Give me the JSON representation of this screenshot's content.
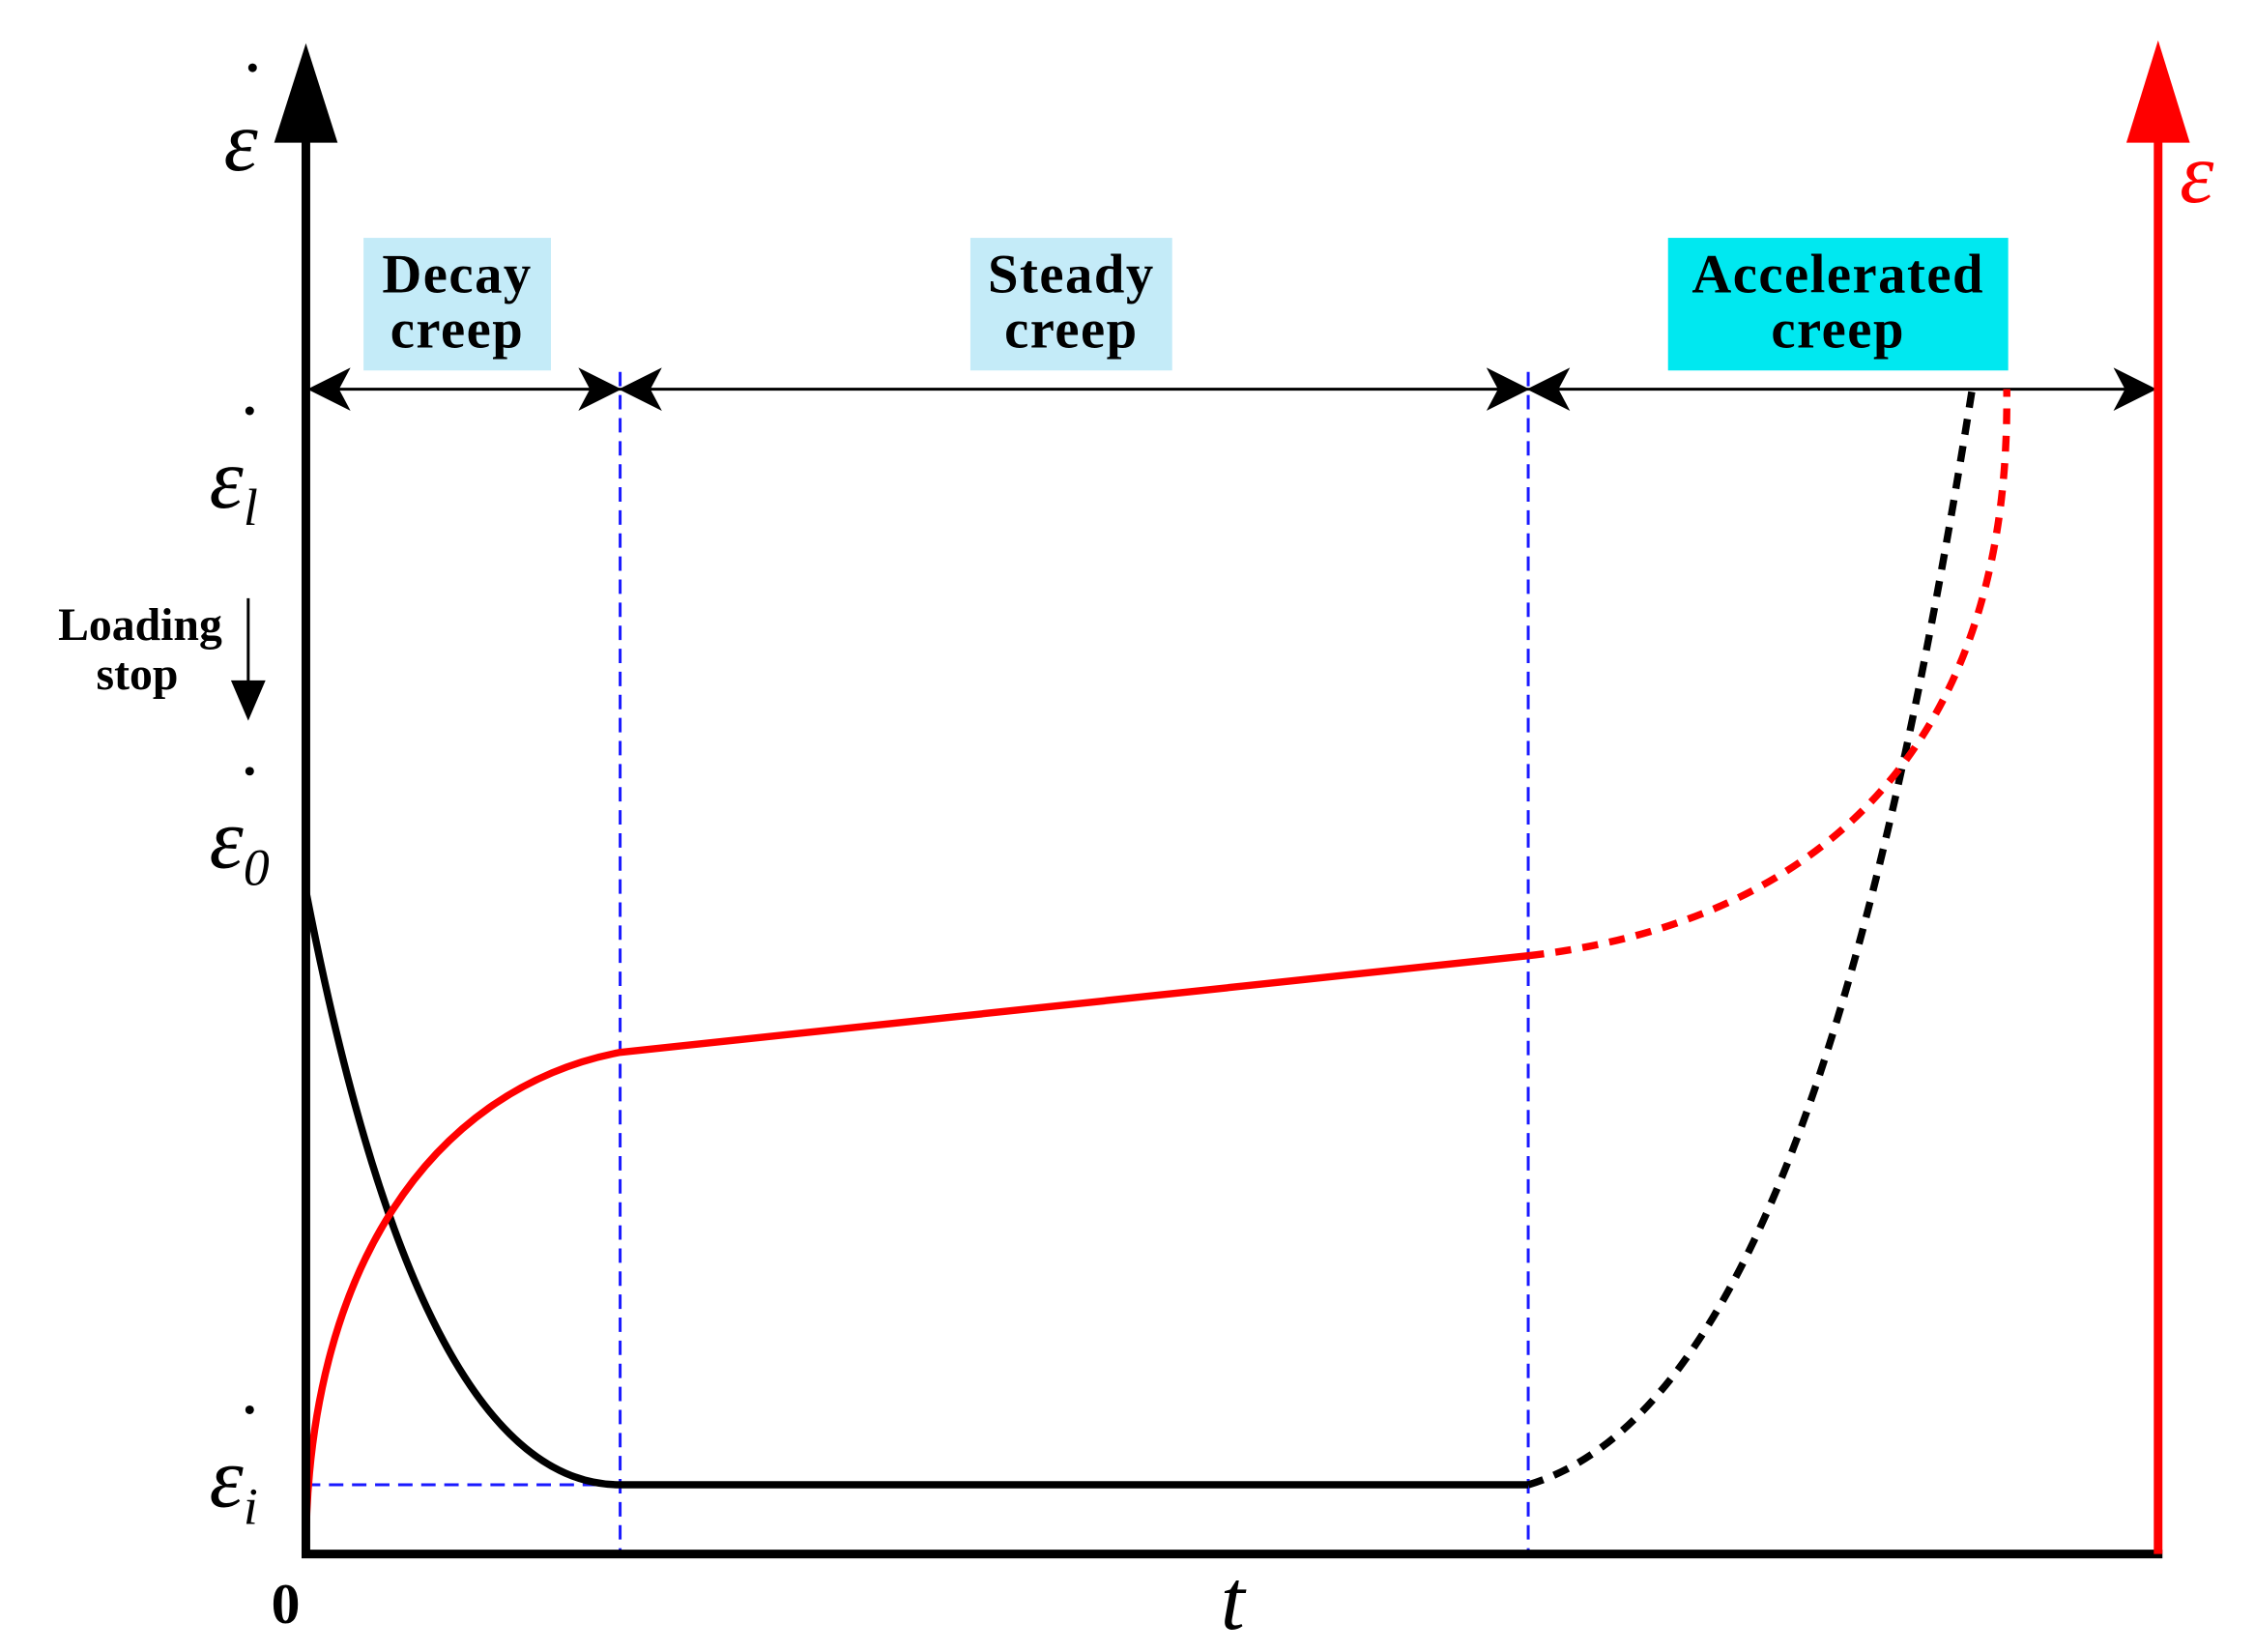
{
  "axes": {
    "left_label": {
      "symbol": "ε"
    },
    "right_label": {
      "symbol": "ε"
    },
    "origin": "0",
    "x_label": "t"
  },
  "levels": [
    {
      "symbol": "ε",
      "subscript": "l"
    },
    {
      "symbol": "ε",
      "subscript": "0"
    },
    {
      "symbol": "ε",
      "subscript": "i"
    }
  ],
  "stages": [
    {
      "lines": [
        "Decay",
        "creep"
      ]
    },
    {
      "lines": [
        "Steady",
        "creep"
      ]
    },
    {
      "lines": [
        "Accelerated",
        "creep"
      ]
    }
  ],
  "annotation": {
    "lines": [
      "Loading",
      "stop"
    ]
  }
}
